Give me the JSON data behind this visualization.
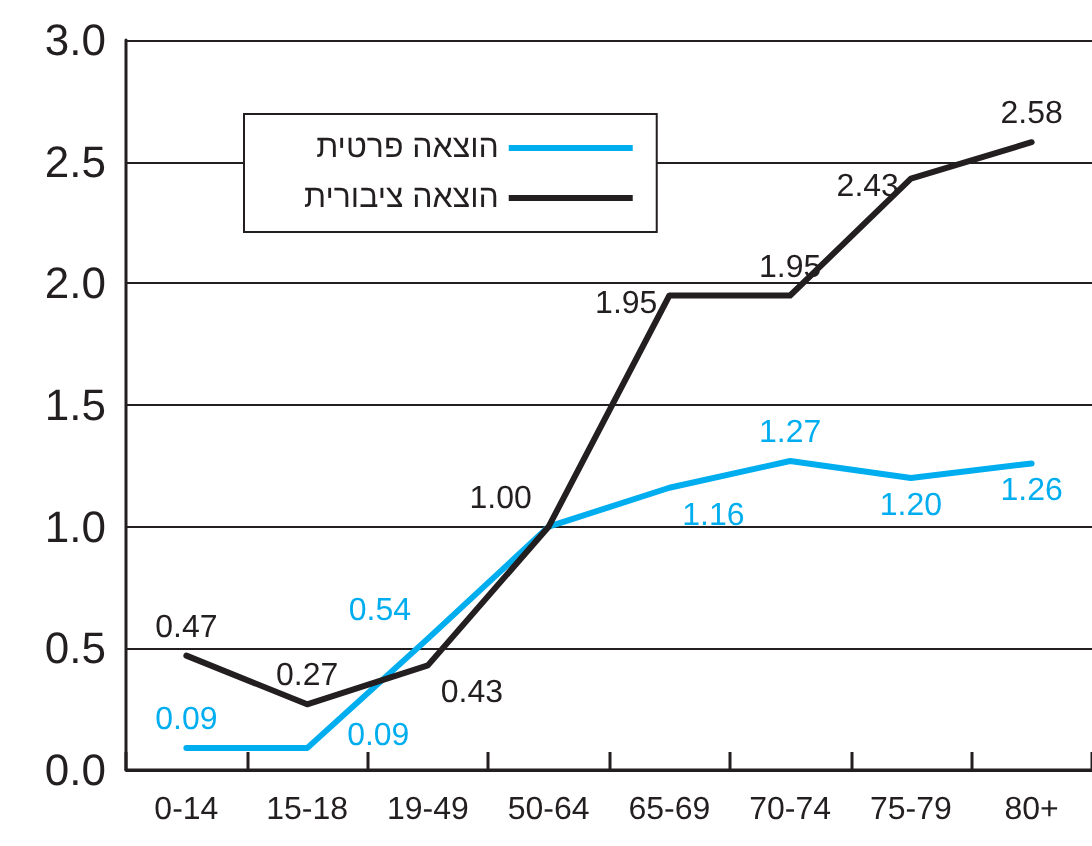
{
  "chart_data": {
    "type": "line",
    "categories": [
      "0-14",
      "15-18",
      "19-49",
      "50-64",
      "65-69",
      "70-74",
      "75-79",
      "80+"
    ],
    "series": [
      {
        "name": "הוצאה פרטית",
        "color": "#00aeef",
        "values": [
          0.09,
          0.09,
          0.54,
          1.0,
          1.16,
          1.27,
          1.2,
          1.26
        ],
        "value_labels": [
          "0.09",
          "0.09",
          "0.54",
          null,
          "1.16",
          "1.27",
          "1.20",
          "1.26"
        ]
      },
      {
        "name": "הוצאה ציבורית",
        "color": "#231f20",
        "values": [
          0.47,
          0.27,
          0.43,
          1.0,
          1.95,
          1.95,
          2.43,
          2.58
        ],
        "value_labels": [
          "0.47",
          "0.27",
          "0.43",
          "1.00",
          "1.95",
          "1.95",
          "2.43",
          "2.58"
        ]
      }
    ],
    "ylim": [
      0,
      3
    ],
    "yticks": [
      {
        "value": 0,
        "label": "0.0"
      },
      0.5,
      {
        "value": 1,
        "label": "1.0"
      },
      1.5,
      {
        "value": 2,
        "label": "2.0"
      },
      2.5,
      {
        "value": 3,
        "label": "3.0"
      }
    ],
    "grid": "y",
    "legend": "top left",
    "marker": "none",
    "line_style": "solid"
  }
}
